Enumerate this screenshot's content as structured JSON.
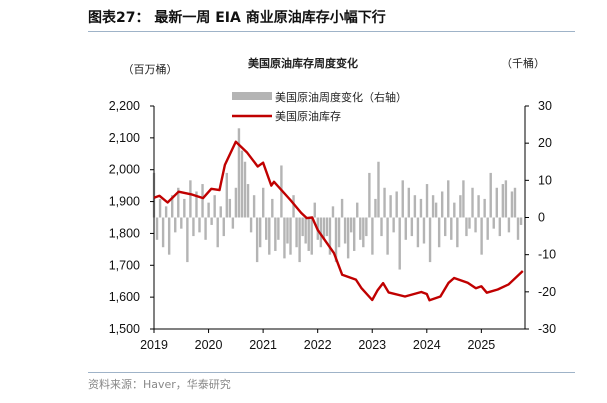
{
  "header": {
    "title": "图表27： 最新一周 EIA 商业原油库存小幅下行"
  },
  "footer": {
    "source": "资料来源：Haver，华泰研究"
  },
  "chart_data": {
    "type": "bar+line",
    "title": "美国原油库存周度变化",
    "left_unit": "（百万桶）",
    "right_unit": "（千桶）",
    "ylim_left": [
      1500,
      2200
    ],
    "ylim_right": [
      -30,
      30
    ],
    "xlim": [
      2019,
      2025.8
    ],
    "left_ticks": [
      "1,500",
      "1,600",
      "1,700",
      "1,800",
      "1,900",
      "2,000",
      "2,100",
      "2,200"
    ],
    "right_ticks": [
      "-30",
      "-20",
      "-10",
      "0",
      "10",
      "20",
      "30"
    ],
    "x_ticks": [
      "2019",
      "2020",
      "2021",
      "2022",
      "2023",
      "2024",
      "2025"
    ],
    "legend_position": "top-center",
    "colors": {
      "bars": "#b4b4b4",
      "line": "#c00000"
    },
    "series": [
      {
        "name": "美国原油周度变化（右轴）",
        "axis": "right",
        "type": "bar",
        "x_start": 2019.0,
        "x_step": 0.0556,
        "values": [
          12,
          -6,
          5,
          -8,
          3,
          -10,
          6,
          -4,
          8,
          -3,
          5,
          -12,
          10,
          -5,
          7,
          -4,
          9,
          -6,
          4,
          -2,
          6,
          -8,
          3,
          -5,
          12,
          5,
          -3,
          8,
          24,
          18,
          15,
          9,
          -4,
          6,
          -12,
          -8,
          8,
          -6,
          -10,
          5,
          -9,
          -6,
          14,
          -11,
          -7,
          -10,
          6,
          -8,
          -12,
          -5,
          -7,
          -9,
          -10,
          4,
          -6,
          -8,
          -6,
          -5,
          -10,
          3,
          -12,
          -8,
          5,
          -7,
          -11,
          -4,
          -9,
          4,
          -6,
          -8,
          -5,
          12,
          -10,
          5,
          15,
          -5,
          8,
          -10,
          6,
          -4,
          7,
          -14,
          10,
          -6,
          8,
          -5,
          6,
          -8,
          5,
          -7,
          9,
          -12,
          6,
          4,
          -8,
          7,
          -5,
          10,
          -6,
          4,
          -8,
          6,
          10,
          -5,
          -3,
          8,
          -4,
          6,
          -10,
          5,
          -6,
          12,
          -3,
          8,
          -5,
          9,
          10,
          -4,
          7,
          8,
          -6,
          -2
        ]
      },
      {
        "name": "美国原油库存",
        "axis": "left",
        "type": "line",
        "x": [
          2019.0,
          2019.1,
          2019.25,
          2019.45,
          2019.7,
          2019.9,
          2020.05,
          2020.2,
          2020.23,
          2020.3,
          2020.5,
          2020.7,
          2020.9,
          2021.0,
          2021.15,
          2021.2,
          2021.5,
          2021.7,
          2021.8,
          2021.9,
          2022.0,
          2022.3,
          2022.45,
          2022.7,
          2022.8,
          2023.0,
          2023.1,
          2023.2,
          2023.3,
          2023.6,
          2023.9,
          2024.0,
          2024.05,
          2024.25,
          2024.4,
          2024.5,
          2024.75,
          2024.9,
          2025.0,
          2025.1,
          2025.3,
          2025.5,
          2025.76
        ],
        "values": [
          1912,
          1918,
          1897,
          1931,
          1922,
          1911,
          1940,
          1936,
          1960,
          2015,
          2088,
          2055,
          2010,
          2022,
          1950,
          1962,
          1905,
          1864,
          1848,
          1850,
          1811,
          1738,
          1670,
          1655,
          1629,
          1591,
          1622,
          1644,
          1615,
          1602,
          1616,
          1610,
          1590,
          1602,
          1645,
          1660,
          1645,
          1628,
          1634,
          1614,
          1624,
          1640,
          1682
        ]
      }
    ]
  }
}
